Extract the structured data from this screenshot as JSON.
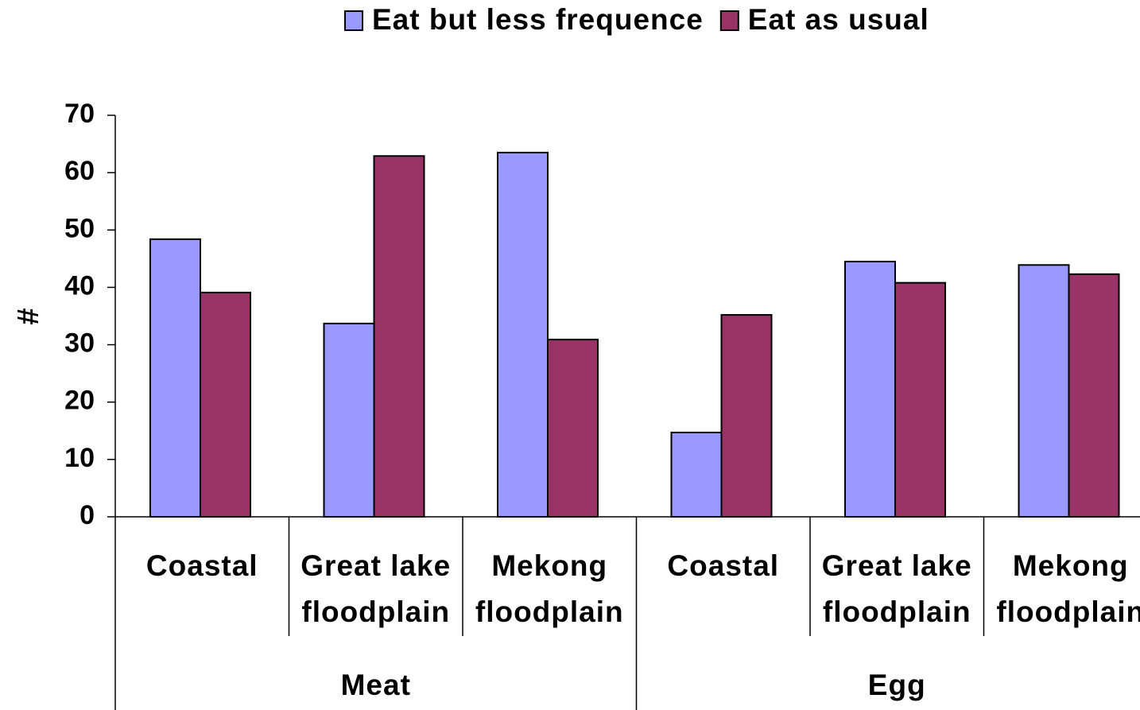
{
  "chart_data": {
    "type": "bar",
    "y_label": "#",
    "groups": [
      "Meat",
      "Egg"
    ],
    "categories": [
      "Coastal",
      "Great lake floodplain",
      "Mekong floodplain",
      "Coastal",
      "Great lake floodplain",
      "Mekong floodplain"
    ],
    "series": [
      {
        "name": "Eat but less frequence",
        "color": "#9999ff",
        "values": [
          48.4,
          33.7,
          63.5,
          14.7,
          44.5,
          43.9
        ]
      },
      {
        "name": "Eat as usual",
        "color": "#993366",
        "values": [
          39.1,
          62.9,
          30.9,
          35.2,
          40.8,
          42.3
        ]
      }
    ],
    "ylim": [
      0,
      70
    ],
    "yticks": [
      0,
      10,
      20,
      30,
      40,
      50,
      60,
      70
    ],
    "legend": "top"
  }
}
